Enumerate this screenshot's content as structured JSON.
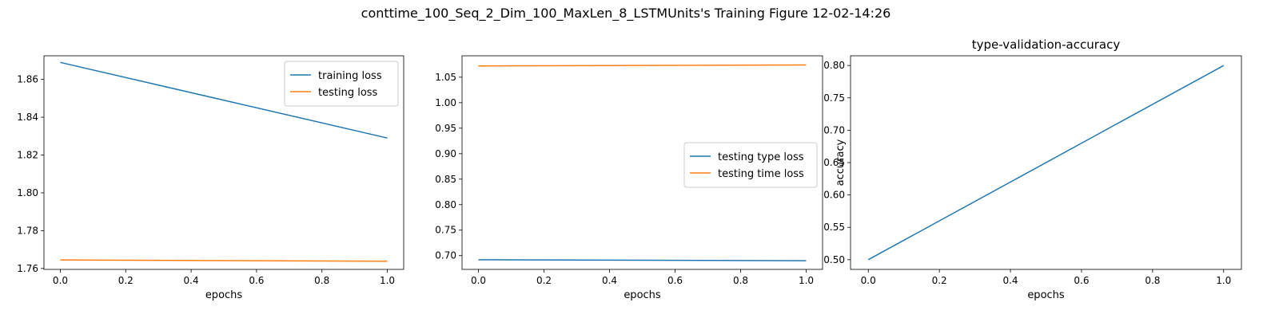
{
  "figure": {
    "title": "conttime_100_Seq_2_Dim_100_MaxLen_8_LSTMUnits's Training Figure 12-02-14:26"
  },
  "colors": {
    "blue": "#1f77b4",
    "orange": "#ff7f0e"
  },
  "chart_data": [
    {
      "type": "line",
      "title": "",
      "xlabel": "epochs",
      "ylabel": "",
      "xlim": [
        -0.05,
        1.05
      ],
      "ylim": [
        1.7595,
        1.8725
      ],
      "xticks": [
        0.0,
        0.2,
        0.4,
        0.6,
        0.8,
        1.0
      ],
      "xtick_labels": [
        "0.0",
        "0.2",
        "0.4",
        "0.6",
        "0.8",
        "1.0"
      ],
      "yticks": [
        1.76,
        1.78,
        1.8,
        1.82,
        1.84,
        1.86
      ],
      "ytick_labels": [
        "1.76",
        "1.78",
        "1.80",
        "1.82",
        "1.84",
        "1.86"
      ],
      "legend": "top-right",
      "grid": false,
      "series": [
        {
          "name": "training loss",
          "color": "#1f77b4",
          "x": [
            0,
            1
          ],
          "y": [
            1.869,
            1.829
          ]
        },
        {
          "name": "testing loss",
          "color": "#ff7f0e",
          "x": [
            0,
            1
          ],
          "y": [
            1.7645,
            1.7638
          ]
        }
      ]
    },
    {
      "type": "line",
      "title": "",
      "xlabel": "epochs",
      "ylabel": "",
      "xlim": [
        -0.05,
        1.05
      ],
      "ylim": [
        0.673,
        1.092
      ],
      "xticks": [
        0.0,
        0.2,
        0.4,
        0.6,
        0.8,
        1.0
      ],
      "xtick_labels": [
        "0.0",
        "0.2",
        "0.4",
        "0.6",
        "0.8",
        "1.0"
      ],
      "yticks": [
        0.7,
        0.75,
        0.8,
        0.85,
        0.9,
        0.95,
        1.0,
        1.05
      ],
      "ytick_labels": [
        "0.70",
        "0.75",
        "0.80",
        "0.85",
        "0.90",
        "0.95",
        "1.00",
        "1.05"
      ],
      "legend": "center-right",
      "grid": false,
      "series": [
        {
          "name": "testing type loss",
          "color": "#1f77b4",
          "x": [
            0,
            1
          ],
          "y": [
            0.692,
            0.69
          ]
        },
        {
          "name": "testing time loss",
          "color": "#ff7f0e",
          "x": [
            0,
            1
          ],
          "y": [
            1.072,
            1.074
          ]
        }
      ]
    },
    {
      "type": "line",
      "title": "type-validation-accuracy",
      "xlabel": "epochs",
      "ylabel": "accuracy",
      "xlim": [
        -0.05,
        1.05
      ],
      "ylim": [
        0.485,
        0.815
      ],
      "xticks": [
        0.0,
        0.2,
        0.4,
        0.6,
        0.8,
        1.0
      ],
      "xtick_labels": [
        "0.0",
        "0.2",
        "0.4",
        "0.6",
        "0.8",
        "1.0"
      ],
      "yticks": [
        0.5,
        0.55,
        0.6,
        0.65,
        0.7,
        0.75,
        0.8
      ],
      "ytick_labels": [
        "0.50",
        "0.55",
        "0.60",
        "0.65",
        "0.70",
        "0.75",
        "0.80"
      ],
      "legend": "none",
      "grid": false,
      "series": [
        {
          "color": "#1f77b4",
          "x": [
            0,
            1
          ],
          "y": [
            0.5,
            0.8
          ]
        }
      ]
    }
  ]
}
